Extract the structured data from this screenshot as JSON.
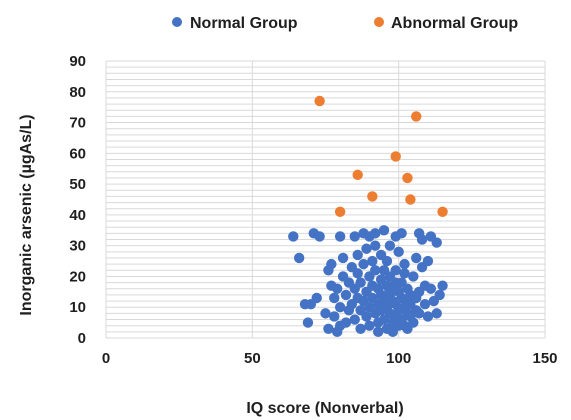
{
  "chart_data": {
    "type": "scatter",
    "title": "",
    "xlabel": "IQ score (Nonverbal)",
    "ylabel": "Inorganic arsenic (µgAs/L)",
    "xlim": [
      0,
      150
    ],
    "ylim": [
      0,
      90
    ],
    "x_ticks": [
      0,
      50,
      100,
      150
    ],
    "y_ticks": [
      0,
      10,
      20,
      30,
      40,
      50,
      60,
      70,
      80,
      90
    ],
    "grid": {
      "horizontal": true,
      "vertical": true,
      "minor_horizontal": true
    },
    "legend_position": "top",
    "series": [
      {
        "name": "Normal Group",
        "color": "#4472c4",
        "points": [
          [
            64,
            33
          ],
          [
            66,
            26
          ],
          [
            68,
            11
          ],
          [
            69,
            5
          ],
          [
            70,
            11
          ],
          [
            71,
            34
          ],
          [
            72,
            13
          ],
          [
            73,
            33
          ],
          [
            75,
            8
          ],
          [
            76,
            3
          ],
          [
            76,
            22
          ],
          [
            77,
            24
          ],
          [
            77,
            17
          ],
          [
            78,
            7
          ],
          [
            78,
            13
          ],
          [
            79,
            2
          ],
          [
            79,
            16
          ],
          [
            80,
            33
          ],
          [
            80,
            10
          ],
          [
            80,
            4
          ],
          [
            81,
            20
          ],
          [
            81,
            26
          ],
          [
            82,
            5
          ],
          [
            82,
            14
          ],
          [
            83,
            9
          ],
          [
            83,
            18
          ],
          [
            84,
            23
          ],
          [
            84,
            11
          ],
          [
            85,
            33
          ],
          [
            85,
            16
          ],
          [
            85,
            6
          ],
          [
            86,
            13
          ],
          [
            86,
            21
          ],
          [
            86,
            27
          ],
          [
            87,
            3
          ],
          [
            87,
            9
          ],
          [
            87,
            18
          ],
          [
            88,
            34
          ],
          [
            88,
            12
          ],
          [
            88,
            24
          ],
          [
            89,
            7
          ],
          [
            89,
            15
          ],
          [
            89,
            29
          ],
          [
            90,
            33
          ],
          [
            90,
            20
          ],
          [
            90,
            10
          ],
          [
            90,
            4
          ],
          [
            91,
            17
          ],
          [
            91,
            25
          ],
          [
            91,
            13
          ],
          [
            92,
            8
          ],
          [
            92,
            22
          ],
          [
            92,
            30
          ],
          [
            92,
            34
          ],
          [
            93,
            11
          ],
          [
            93,
            16
          ],
          [
            93,
            5
          ],
          [
            94,
            19
          ],
          [
            94,
            27
          ],
          [
            94,
            9
          ],
          [
            94,
            14
          ],
          [
            95,
            35
          ],
          [
            95,
            12
          ],
          [
            95,
            22
          ],
          [
            95,
            6
          ],
          [
            96,
            17
          ],
          [
            96,
            3
          ],
          [
            96,
            10
          ],
          [
            96,
            25
          ],
          [
            97,
            14
          ],
          [
            97,
            8
          ],
          [
            97,
            20
          ],
          [
            97,
            30
          ],
          [
            98,
            12
          ],
          [
            98,
            5
          ],
          [
            98,
            16
          ],
          [
            98,
            2
          ],
          [
            99,
            11
          ],
          [
            99,
            33
          ],
          [
            99,
            7
          ],
          [
            99,
            22
          ],
          [
            100,
            15
          ],
          [
            100,
            9
          ],
          [
            100,
            4
          ],
          [
            100,
            28
          ],
          [
            101,
            13
          ],
          [
            101,
            18
          ],
          [
            101,
            34
          ],
          [
            101,
            6
          ],
          [
            102,
            10
          ],
          [
            102,
            21
          ],
          [
            102,
            24
          ],
          [
            103,
            8
          ],
          [
            103,
            16
          ],
          [
            103,
            12
          ],
          [
            103,
            3
          ],
          [
            104,
            7
          ],
          [
            104,
            14
          ],
          [
            104,
            11
          ],
          [
            105,
            20
          ],
          [
            105,
            5
          ],
          [
            106,
            13
          ],
          [
            106,
            9
          ],
          [
            106,
            26
          ],
          [
            107,
            34
          ],
          [
            107,
            15
          ],
          [
            107,
            8
          ],
          [
            108,
            23
          ],
          [
            108,
            32
          ],
          [
            109,
            17
          ],
          [
            109,
            11
          ],
          [
            110,
            25
          ],
          [
            110,
            7
          ],
          [
            111,
            16
          ],
          [
            111,
            33
          ],
          [
            112,
            12
          ],
          [
            113,
            31
          ],
          [
            113,
            8
          ],
          [
            114,
            14
          ],
          [
            115,
            17
          ],
          [
            93,
            2
          ],
          [
            96,
            14
          ],
          [
            99,
            18
          ],
          [
            102,
            4
          ]
        ]
      },
      {
        "name": "Abnormal Group",
        "color": "#ed7d31",
        "points": [
          [
            73,
            77
          ],
          [
            80,
            41
          ],
          [
            86,
            53
          ],
          [
            91,
            46
          ],
          [
            99,
            59
          ],
          [
            103,
            52
          ],
          [
            104,
            45
          ],
          [
            106,
            72
          ],
          [
            115,
            41
          ]
        ]
      }
    ]
  }
}
